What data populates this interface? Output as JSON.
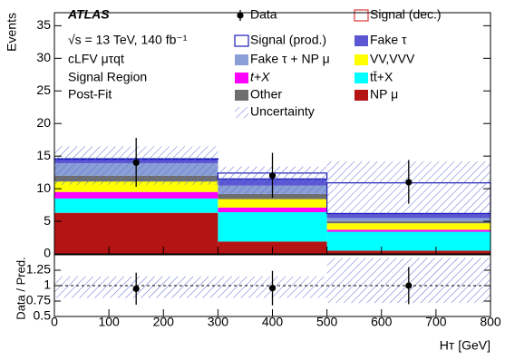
{
  "chart_data": [
    {
      "type": "histogram",
      "stacked": true,
      "annotations": [
        "ATLAS",
        "√s = 13 TeV, 140 fb⁻¹",
        "cLFV μτqt",
        "Signal Region",
        "Post-Fit"
      ],
      "ylabel": "Events",
      "bins": [
        0,
        300,
        500,
        800
      ],
      "xlim": [
        0,
        800
      ],
      "ylim": [
        0,
        37
      ],
      "yticks": [
        0,
        5,
        10,
        15,
        20,
        25,
        30,
        35
      ],
      "series": [
        {
          "name": "NP μ",
          "color": "#b51414",
          "style": "fill",
          "values": [
            6.3,
            1.9,
            0.5
          ]
        },
        {
          "name": "tt̄+X",
          "color": "#00ffff",
          "style": "fill",
          "values": [
            2.2,
            4.5,
            2.9
          ]
        },
        {
          "name": "t+X",
          "color": "#ff00ff",
          "style": "fill",
          "values": [
            1.0,
            0.7,
            0.3
          ]
        },
        {
          "name": "VV,VVV",
          "color": "#ffff00",
          "style": "fill",
          "values": [
            1.6,
            1.3,
            1.0
          ]
        },
        {
          "name": "Other",
          "color": "#6e6e6e",
          "style": "fill",
          "values": [
            0.9,
            0.8,
            0.3
          ]
        },
        {
          "name": "Fake τ + NP μ",
          "color": "#8a9fd6",
          "style": "fill",
          "values": [
            1.9,
            1.3,
            0.5
          ]
        },
        {
          "name": "Fake τ",
          "color": "#5b56d3",
          "style": "fill",
          "values": [
            0.6,
            1.0,
            0.7
          ]
        },
        {
          "name": "Signal (prod.)",
          "color": "#1a1ab8",
          "style": "outline",
          "values": [
            0.1,
            0.9,
            4.7
          ]
        },
        {
          "name": "Signal (dec.)",
          "color": "#e03a3a",
          "style": "outline"
        }
      ],
      "data": {
        "name": "Data",
        "x": [
          150,
          400,
          650
        ],
        "values": [
          14,
          12,
          11
        ],
        "err_low": [
          3.7,
          3.4,
          3.3
        ],
        "err_high": [
          3.8,
          3.5,
          3.4
        ]
      },
      "uncertainty": {
        "name": "Uncertainty",
        "color": "#5b6fd0",
        "low": [
          10.6,
          9.0,
          6.2
        ],
        "high": [
          16.5,
          13.4,
          14.2
        ]
      }
    },
    {
      "type": "ratio",
      "ylabel": "Data / Pred.",
      "xlabel": "Hᴛ [GeV]",
      "xlim": [
        0,
        800
      ],
      "xticks": [
        0,
        100,
        200,
        300,
        400,
        500,
        600,
        700,
        800
      ],
      "ylim": [
        0.5,
        1.5
      ],
      "yticks": [
        0.5,
        0.75,
        1,
        1.25
      ],
      "reference_line": 1,
      "x": [
        150,
        400,
        650
      ],
      "values": [
        0.95,
        0.96,
        1.0
      ],
      "err": [
        0.26,
        0.28,
        0.3
      ],
      "band": {
        "low": [
          0.8,
          0.8,
          0.72
        ],
        "high": [
          1.15,
          1.15,
          1.45
        ]
      }
    }
  ]
}
